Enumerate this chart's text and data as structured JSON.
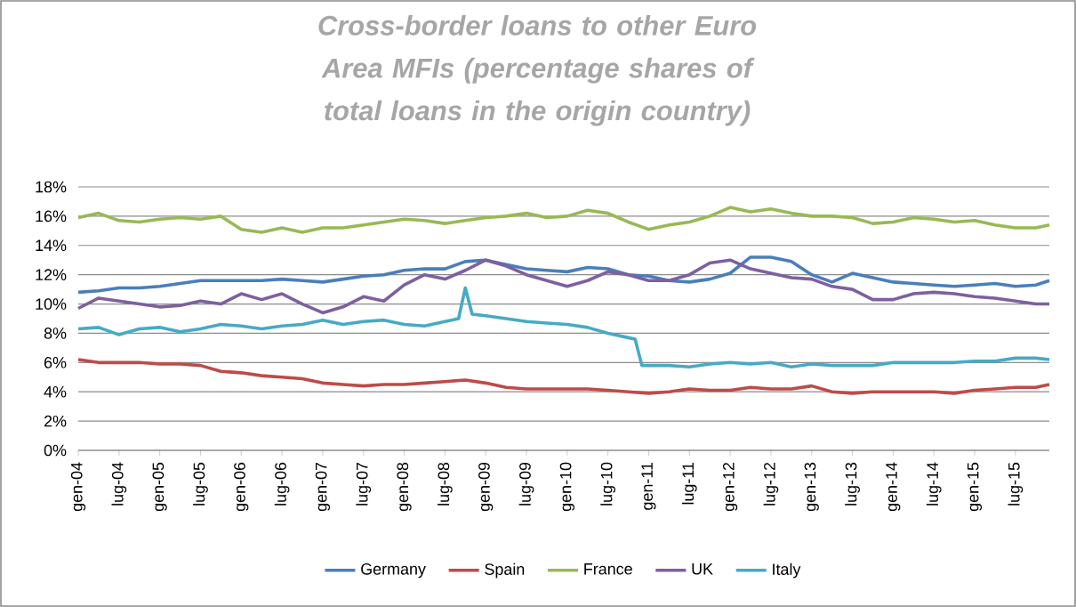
{
  "chart_data": {
    "type": "line",
    "title": "Cross-border  loans to other Euro Area MFIs (percentage shares of total loans in the origin country)",
    "x": [
      "2004-01",
      "2004-04",
      "2004-07",
      "2004-10",
      "2005-01",
      "2005-04",
      "2005-07",
      "2005-10",
      "2006-01",
      "2006-04",
      "2006-07",
      "2006-10",
      "2007-01",
      "2007-04",
      "2007-07",
      "2007-10",
      "2008-01",
      "2008-04",
      "2008-07",
      "2008-10",
      "2009-01",
      "2009-04",
      "2009-07",
      "2009-10",
      "2010-01",
      "2010-04",
      "2010-07",
      "2010-10",
      "2011-01",
      "2011-04",
      "2011-07",
      "2011-10",
      "2012-01",
      "2012-04",
      "2012-07",
      "2012-10",
      "2013-01",
      "2013-04",
      "2013-07",
      "2013-10",
      "2014-01",
      "2014-04",
      "2014-07",
      "2014-10",
      "2015-01",
      "2015-04",
      "2015-07",
      "2015-10",
      "2015-12"
    ],
    "series": [
      {
        "name": "Germany",
        "color": "#4a7ebb",
        "values": [
          10.8,
          10.9,
          11.1,
          11.1,
          11.2,
          11.4,
          11.6,
          11.6,
          11.6,
          11.6,
          11.7,
          11.6,
          11.5,
          11.7,
          11.9,
          12.0,
          12.3,
          12.4,
          12.4,
          12.9,
          13.0,
          12.7,
          12.4,
          12.3,
          12.2,
          12.5,
          12.4,
          12.0,
          11.9,
          11.6,
          11.5,
          11.7,
          12.1,
          13.2,
          13.2,
          12.9,
          12.0,
          11.5,
          12.1,
          11.8,
          11.5,
          11.4,
          11.3,
          11.2,
          11.3,
          11.4,
          11.2,
          11.3,
          11.6
        ]
      },
      {
        "name": "Spain",
        "color": "#be4b48",
        "values": [
          6.2,
          6.0,
          6.0,
          6.0,
          5.9,
          5.9,
          5.8,
          5.4,
          5.3,
          5.1,
          5.0,
          4.9,
          4.6,
          4.5,
          4.4,
          4.5,
          4.5,
          4.6,
          4.7,
          4.8,
          4.6,
          4.3,
          4.2,
          4.2,
          4.2,
          4.2,
          4.1,
          4.0,
          3.9,
          4.0,
          4.2,
          4.1,
          4.1,
          4.3,
          4.2,
          4.2,
          4.4,
          4.0,
          3.9,
          4.0,
          4.0,
          4.0,
          4.0,
          3.9,
          4.1,
          4.2,
          4.3,
          4.3,
          4.5
        ]
      },
      {
        "name": "France",
        "color": "#98b954",
        "values": [
          15.9,
          16.2,
          15.7,
          15.6,
          15.8,
          15.9,
          15.8,
          16.0,
          15.1,
          14.9,
          15.2,
          14.9,
          15.2,
          15.2,
          15.4,
          15.6,
          15.8,
          15.7,
          15.5,
          15.7,
          15.9,
          16.0,
          16.2,
          15.9,
          16.0,
          16.4,
          16.2,
          15.6,
          15.1,
          15.4,
          15.6,
          16.0,
          16.6,
          16.3,
          16.5,
          16.2,
          16.0,
          16.0,
          15.9,
          15.5,
          15.6,
          15.9,
          15.8,
          15.6,
          15.7,
          15.4,
          15.2,
          15.2,
          15.4
        ]
      },
      {
        "name": "UK",
        "color": "#7d60a0",
        "values": [
          9.7,
          10.4,
          10.2,
          10.0,
          9.8,
          9.9,
          10.2,
          10.0,
          10.7,
          10.3,
          10.7,
          10.0,
          9.4,
          9.8,
          10.5,
          10.2,
          11.3,
          12.0,
          11.7,
          12.3,
          13.0,
          12.6,
          12.0,
          11.6,
          11.2,
          11.6,
          12.2,
          12.0,
          11.6,
          11.6,
          12.0,
          12.8,
          13.0,
          12.4,
          12.1,
          11.8,
          11.7,
          11.2,
          11.0,
          10.3,
          10.3,
          10.7,
          10.8,
          10.7,
          10.5,
          10.4,
          10.2,
          10.0,
          10.0
        ]
      },
      {
        "name": "Italy",
        "color": "#46aac5",
        "x": [
          "2004-01",
          "2004-04",
          "2004-07",
          "2004-10",
          "2005-01",
          "2005-04",
          "2005-07",
          "2005-10",
          "2006-01",
          "2006-04",
          "2006-07",
          "2006-10",
          "2007-01",
          "2007-04",
          "2007-07",
          "2007-10",
          "2008-01",
          "2008-04",
          "2008-07",
          "2008-09",
          "2008-10",
          "2008-11",
          "2009-01",
          "2009-04",
          "2009-07",
          "2009-10",
          "2010-01",
          "2010-04",
          "2010-07",
          "2010-10",
          "2010-11",
          "2010-12",
          "2011-01",
          "2011-04",
          "2011-07",
          "2011-10",
          "2012-01",
          "2012-04",
          "2012-07",
          "2012-10",
          "2013-01",
          "2013-04",
          "2013-07",
          "2013-10",
          "2014-01",
          "2014-04",
          "2014-07",
          "2014-10",
          "2015-01",
          "2015-04",
          "2015-07",
          "2015-10",
          "2015-12"
        ],
        "values": [
          8.3,
          8.4,
          7.9,
          8.3,
          8.4,
          8.1,
          8.3,
          8.6,
          8.5,
          8.3,
          8.5,
          8.6,
          8.9,
          8.6,
          8.8,
          8.9,
          8.6,
          8.5,
          8.8,
          9.0,
          11.1,
          9.3,
          9.2,
          9.0,
          8.8,
          8.7,
          8.6,
          8.4,
          8.0,
          7.7,
          7.6,
          5.8,
          5.8,
          5.8,
          5.7,
          5.9,
          6.0,
          5.9,
          6.0,
          5.7,
          5.9,
          5.8,
          5.8,
          5.8,
          6.0,
          6.0,
          6.0,
          6.0,
          6.1,
          6.1,
          6.3,
          6.3,
          6.2
        ]
      }
    ],
    "xlim": [
      "2004-01",
      "2015-12"
    ],
    "xticks": [
      {
        "value": "2004-01",
        "label": "gen-04"
      },
      {
        "value": "2004-07",
        "label": "lug-04"
      },
      {
        "value": "2005-01",
        "label": "gen-05"
      },
      {
        "value": "2005-07",
        "label": "lug-05"
      },
      {
        "value": "2006-01",
        "label": "gen-06"
      },
      {
        "value": "2006-07",
        "label": "lug-06"
      },
      {
        "value": "2007-01",
        "label": "gen-07"
      },
      {
        "value": "2007-07",
        "label": "lug-07"
      },
      {
        "value": "2008-01",
        "label": "gen-08"
      },
      {
        "value": "2008-07",
        "label": "lug-08"
      },
      {
        "value": "2009-01",
        "label": "gen-09"
      },
      {
        "value": "2009-07",
        "label": "lug-09"
      },
      {
        "value": "2010-01",
        "label": "gen-10"
      },
      {
        "value": "2010-07",
        "label": "lug-10"
      },
      {
        "value": "2011-01",
        "label": "gen-11"
      },
      {
        "value": "2011-07",
        "label": "lug-11"
      },
      {
        "value": "2012-01",
        "label": "gen-12"
      },
      {
        "value": "2012-07",
        "label": "lug-12"
      },
      {
        "value": "2013-01",
        "label": "gen-13"
      },
      {
        "value": "2013-07",
        "label": "lug-13"
      },
      {
        "value": "2014-01",
        "label": "gen-14"
      },
      {
        "value": "2014-07",
        "label": "lug-14"
      },
      {
        "value": "2015-01",
        "label": "gen-15"
      },
      {
        "value": "2015-07",
        "label": "lug-15"
      }
    ],
    "ylim": [
      0,
      18
    ],
    "yticks": [
      {
        "value": 0,
        "label": "0%"
      },
      {
        "value": 2,
        "label": "2%"
      },
      {
        "value": 4,
        "label": "4%"
      },
      {
        "value": 6,
        "label": "6%"
      },
      {
        "value": 8,
        "label": "8%"
      },
      {
        "value": 10,
        "label": "10%"
      },
      {
        "value": 12,
        "label": "12%"
      },
      {
        "value": 14,
        "label": "14%"
      },
      {
        "value": 16,
        "label": "16%"
      },
      {
        "value": 18,
        "label": "18%"
      }
    ],
    "grid": "y",
    "legend": "bottom",
    "marker": "none",
    "line_style": "solid"
  }
}
